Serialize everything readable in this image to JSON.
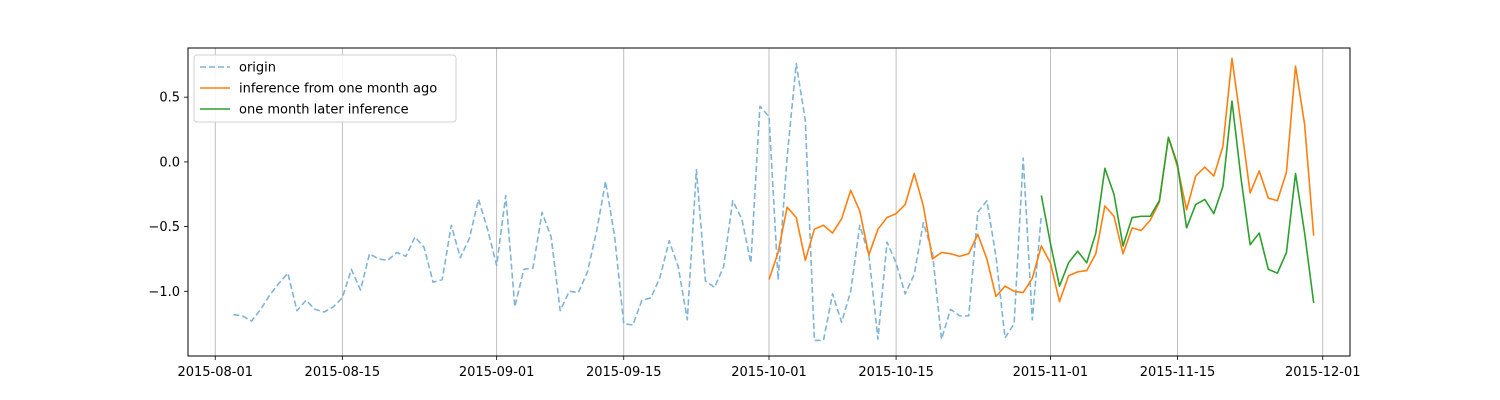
{
  "chart_data": {
    "type": "line",
    "title": "",
    "xlabel": "",
    "ylabel": "",
    "x_axis_type": "date",
    "xlim": [
      "2015-07-29",
      "2015-12-04"
    ],
    "ylim": [
      -1.5,
      0.88
    ],
    "x_ticks": [
      "2015-08-01",
      "2015-08-15",
      "2015-09-01",
      "2015-09-15",
      "2015-10-01",
      "2015-10-15",
      "2015-11-01",
      "2015-11-15",
      "2015-12-01"
    ],
    "y_ticks": [
      -1.0,
      -0.5,
      0.0,
      0.5
    ],
    "y_tick_labels": [
      "−1.0",
      "−0.5",
      "0.0",
      "0.5"
    ],
    "grid": "vertical",
    "legend_placement": "top-left",
    "series": [
      {
        "name": "origin",
        "color": "#7eb4d8",
        "style": "dashed",
        "x": [
          "2015-08-03",
          "2015-08-04",
          "2015-08-05",
          "2015-08-06",
          "2015-08-07",
          "2015-08-08",
          "2015-08-09",
          "2015-08-10",
          "2015-08-11",
          "2015-08-12",
          "2015-08-13",
          "2015-08-14",
          "2015-08-15",
          "2015-08-16",
          "2015-08-17",
          "2015-08-18",
          "2015-08-19",
          "2015-08-20",
          "2015-08-21",
          "2015-08-22",
          "2015-08-23",
          "2015-08-24",
          "2015-08-25",
          "2015-08-26",
          "2015-08-27",
          "2015-08-28",
          "2015-08-29",
          "2015-08-30",
          "2015-08-31",
          "2015-09-01",
          "2015-09-02",
          "2015-09-03",
          "2015-09-04",
          "2015-09-05",
          "2015-09-06",
          "2015-09-07",
          "2015-09-08",
          "2015-09-09",
          "2015-09-10",
          "2015-09-11",
          "2015-09-12",
          "2015-09-13",
          "2015-09-14",
          "2015-09-15",
          "2015-09-16",
          "2015-09-17",
          "2015-09-18",
          "2015-09-19",
          "2015-09-20",
          "2015-09-21",
          "2015-09-22",
          "2015-09-23",
          "2015-09-24",
          "2015-09-25",
          "2015-09-26",
          "2015-09-27",
          "2015-09-28",
          "2015-09-29",
          "2015-09-30",
          "2015-10-01",
          "2015-10-02",
          "2015-10-03",
          "2015-10-04",
          "2015-10-05",
          "2015-10-06",
          "2015-10-07",
          "2015-10-08",
          "2015-10-09",
          "2015-10-10",
          "2015-10-11",
          "2015-10-12",
          "2015-10-13",
          "2015-10-14",
          "2015-10-15",
          "2015-10-16",
          "2015-10-17",
          "2015-10-18",
          "2015-10-19",
          "2015-10-20",
          "2015-10-21",
          "2015-10-22",
          "2015-10-23",
          "2015-10-24",
          "2015-10-25",
          "2015-10-26",
          "2015-10-27",
          "2015-10-28",
          "2015-10-29",
          "2015-10-30",
          "2015-10-31"
        ],
        "values": [
          -1.18,
          -1.19,
          -1.23,
          -1.14,
          -1.03,
          -0.94,
          -0.86,
          -1.15,
          -1.07,
          -1.14,
          -1.16,
          -1.12,
          -1.05,
          -0.83,
          -0.99,
          -0.71,
          -0.75,
          -0.76,
          -0.7,
          -0.73,
          -0.58,
          -0.66,
          -0.93,
          -0.91,
          -0.49,
          -0.74,
          -0.59,
          -0.29,
          -0.52,
          -0.8,
          -0.26,
          -1.12,
          -0.83,
          -0.82,
          -0.39,
          -0.58,
          -1.15,
          -1.0,
          -1.01,
          -0.85,
          -0.54,
          -0.15,
          -0.58,
          -1.25,
          -1.26,
          -1.07,
          -1.05,
          -0.89,
          -0.61,
          -0.81,
          -1.22,
          -0.06,
          -0.92,
          -0.97,
          -0.81,
          -0.3,
          -0.44,
          -0.78,
          0.43,
          0.35,
          -0.91,
          0.04,
          0.76,
          0.32,
          -1.38,
          -1.38,
          -1.02,
          -1.24,
          -1.0,
          -0.49,
          -0.72,
          -1.37,
          -0.62,
          -0.78,
          -1.02,
          -0.87,
          -0.47,
          -0.7,
          -1.37,
          -1.14,
          -1.19,
          -1.19,
          -0.39,
          -0.3,
          -0.73,
          -1.36,
          -1.25,
          0.03,
          -1.22,
          -0.41
        ]
      },
      {
        "name": "inference from one month ago",
        "color": "#ff7f0e",
        "style": "solid",
        "x": [
          "2015-10-01",
          "2015-10-02",
          "2015-10-03",
          "2015-10-04",
          "2015-10-05",
          "2015-10-06",
          "2015-10-07",
          "2015-10-08",
          "2015-10-09",
          "2015-10-10",
          "2015-10-11",
          "2015-10-12",
          "2015-10-13",
          "2015-10-14",
          "2015-10-15",
          "2015-10-16",
          "2015-10-17",
          "2015-10-18",
          "2015-10-19",
          "2015-10-20",
          "2015-10-21",
          "2015-10-22",
          "2015-10-23",
          "2015-10-24",
          "2015-10-25",
          "2015-10-26",
          "2015-10-27",
          "2015-10-28",
          "2015-10-29",
          "2015-10-30",
          "2015-10-31",
          "2015-11-01",
          "2015-11-02",
          "2015-11-03",
          "2015-11-04",
          "2015-11-05",
          "2015-11-06",
          "2015-11-07",
          "2015-11-08",
          "2015-11-09",
          "2015-11-10",
          "2015-11-11",
          "2015-11-12",
          "2015-11-13",
          "2015-11-14",
          "2015-11-15",
          "2015-11-16",
          "2015-11-17",
          "2015-11-18",
          "2015-11-19",
          "2015-11-20",
          "2015-11-21",
          "2015-11-22",
          "2015-11-23",
          "2015-11-24",
          "2015-11-25",
          "2015-11-26",
          "2015-11-27",
          "2015-11-28",
          "2015-11-29",
          "2015-11-30"
        ],
        "values": [
          -0.91,
          -0.7,
          -0.35,
          -0.43,
          -0.76,
          -0.52,
          -0.49,
          -0.55,
          -0.44,
          -0.22,
          -0.38,
          -0.72,
          -0.52,
          -0.43,
          -0.4,
          -0.33,
          -0.09,
          -0.34,
          -0.75,
          -0.7,
          -0.71,
          -0.73,
          -0.71,
          -0.56,
          -0.75,
          -1.04,
          -0.96,
          -1.0,
          -1.01,
          -0.9,
          -0.65,
          -0.78,
          -1.08,
          -0.88,
          -0.85,
          -0.84,
          -0.71,
          -0.34,
          -0.42,
          -0.71,
          -0.51,
          -0.53,
          -0.45,
          -0.31,
          0.19,
          -0.04,
          -0.37,
          -0.11,
          -0.04,
          -0.11,
          0.12,
          0.8,
          0.29,
          -0.24,
          -0.07,
          -0.28,
          -0.3,
          -0.08,
          0.74,
          0.29,
          -0.57
        ]
      },
      {
        "name": "one month later inference",
        "color": "#2ca02c",
        "style": "solid",
        "x": [
          "2015-10-31",
          "2015-11-01",
          "2015-11-02",
          "2015-11-03",
          "2015-11-04",
          "2015-11-05",
          "2015-11-06",
          "2015-11-07",
          "2015-11-08",
          "2015-11-09",
          "2015-11-10",
          "2015-11-11",
          "2015-11-12",
          "2015-11-13",
          "2015-11-14",
          "2015-11-15",
          "2015-11-16",
          "2015-11-17",
          "2015-11-18",
          "2015-11-19",
          "2015-11-20",
          "2015-11-21",
          "2015-11-22",
          "2015-11-23",
          "2015-11-24",
          "2015-11-25",
          "2015-11-26",
          "2015-11-27",
          "2015-11-28",
          "2015-11-29",
          "2015-11-30"
        ],
        "values": [
          -0.26,
          -0.63,
          -0.96,
          -0.78,
          -0.69,
          -0.78,
          -0.55,
          -0.05,
          -0.25,
          -0.65,
          -0.43,
          -0.42,
          -0.42,
          -0.3,
          0.19,
          -0.02,
          -0.51,
          -0.33,
          -0.29,
          -0.4,
          -0.19,
          0.47,
          -0.13,
          -0.64,
          -0.55,
          -0.83,
          -0.86,
          -0.7,
          -0.09,
          -0.55,
          -1.09
        ]
      }
    ]
  }
}
